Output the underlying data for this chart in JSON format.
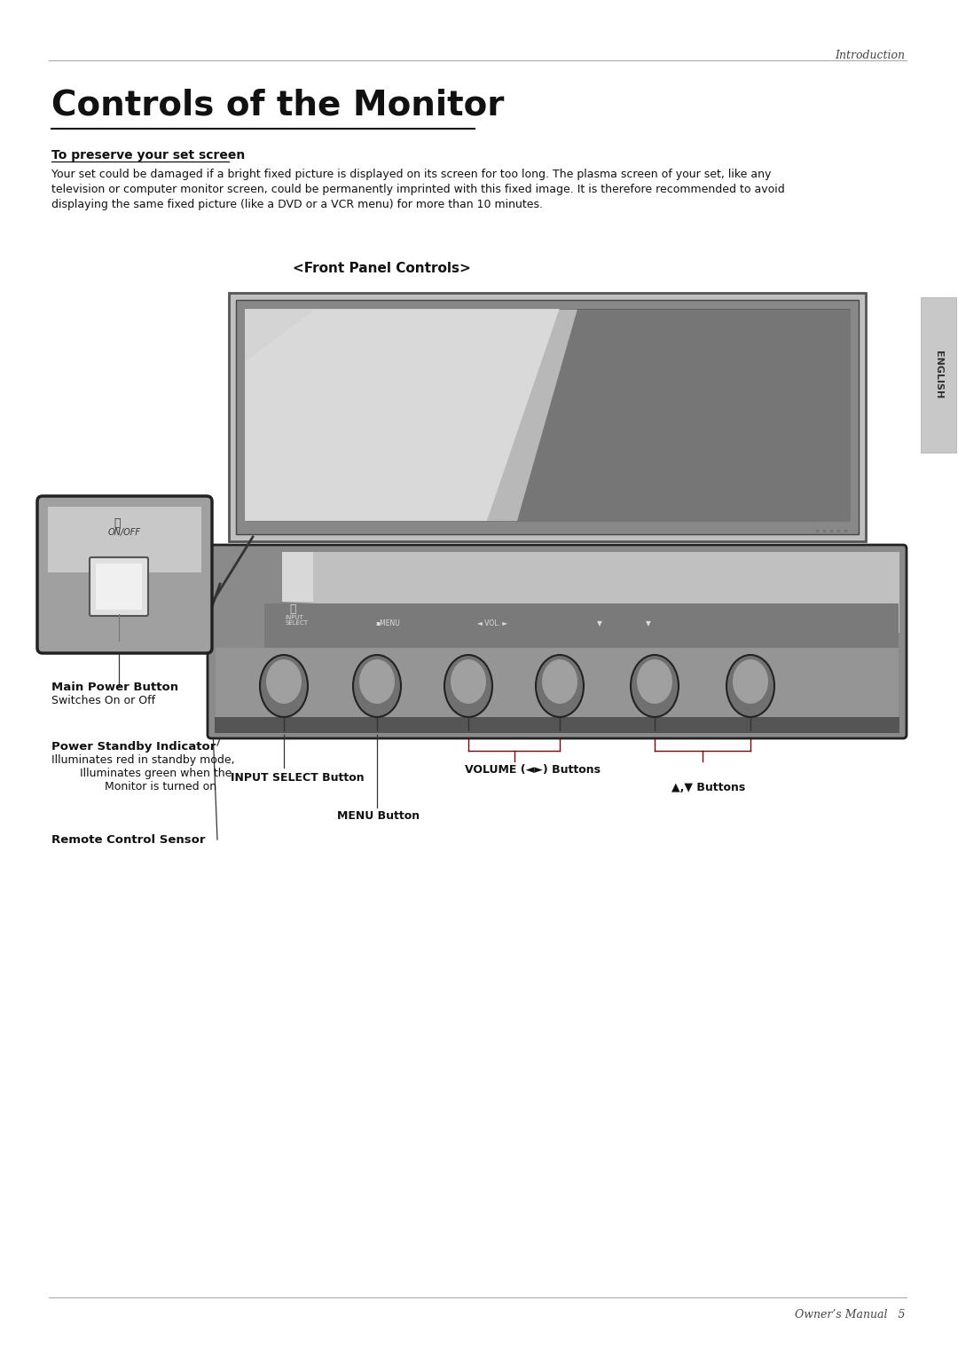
{
  "bg_color": "#ffffff",
  "header_italic": "Introduction",
  "page_title": "Controls of the Monitor",
  "subtitle_bold": "To preserve your set screen",
  "body_line1": "Your set could be damaged if a bright fixed picture is displayed on its screen for too long. The plasma screen of your set, like any",
  "body_line2": "television or computer monitor screen, could be permanently imprinted with this fixed image. It is therefore recommended to avoid",
  "body_line3": "displaying the same fixed picture (like a DVD or a VCR menu) for more than 10 minutes.",
  "front_panel_label": "<Front Panel Controls>",
  "sidebar_text": "ENGLISH",
  "label_main_power": "Main Power Button",
  "label_main_power_sub": "Switches On or Off",
  "label_standby": "Power Standby Indicator",
  "label_standby_sub1": "Illuminates red in standby mode,",
  "label_standby_sub2": "Illuminates green when the",
  "label_standby_sub3": "Monitor is turned on",
  "label_remote": "Remote Control Sensor",
  "label_input": "INPUT SELECT Button",
  "label_menu": "MENU Button",
  "label_volume": "VOLUME (◄►) Buttons",
  "label_arrows": "▲,▼ Buttons",
  "footer_text": "Owner’s Manual   5",
  "line_color": "#aaaaaa",
  "text_color": "#111111",
  "arrow_color": "#333333"
}
